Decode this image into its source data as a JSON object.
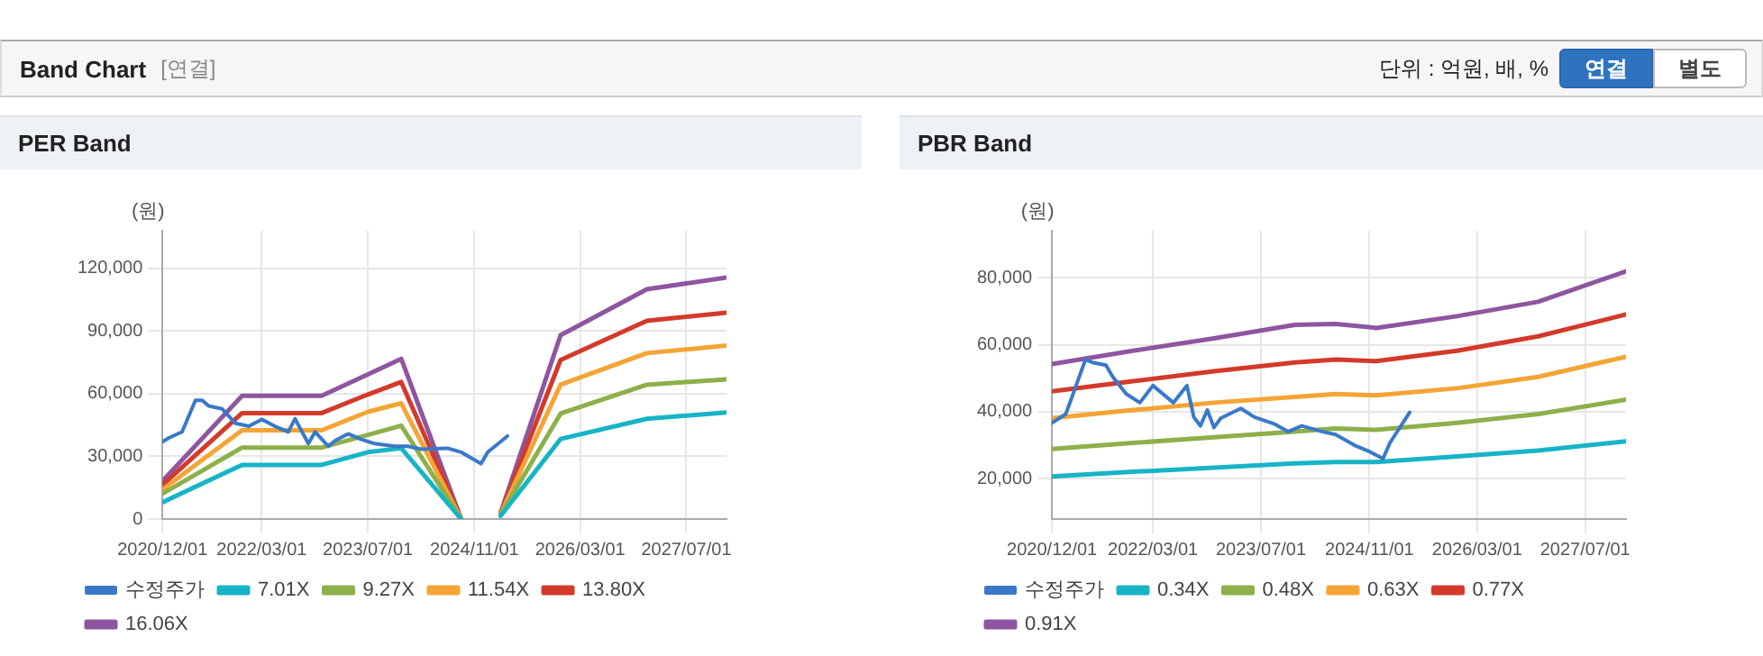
{
  "chart_data": [
    {
      "type": "other",
      "title": "Band Chart",
      "subtitle": "[연결]",
      "annotations": [
        "단위 : 억원, 배, %",
        "연결",
        "별도"
      ]
    },
    {
      "type": "line",
      "title": "PER Band",
      "ylabel": "(원)",
      "xlim": [
        "2020-12-01",
        "2028-01-01"
      ],
      "xticks": [
        {
          "value": "2020-12-01",
          "label": "2020/12/01"
        },
        {
          "value": "2022-03-01",
          "label": "2022/03/01"
        },
        {
          "value": "2023-07-01",
          "label": "2023/07/01"
        },
        {
          "value": "2024-11-01",
          "label": "2024/11/01"
        },
        {
          "value": "2026-03-01",
          "label": "2026/03/01"
        },
        {
          "value": "2027-07-01",
          "label": "2027/07/01"
        }
      ],
      "ylim": [
        0,
        138000
      ],
      "yticks": [
        {
          "value": 0,
          "label": "0"
        },
        {
          "value": 30000,
          "label": "30,000"
        },
        {
          "value": 60000,
          "label": "60,000"
        },
        {
          "value": 90000,
          "label": "90,000"
        },
        {
          "value": 120000,
          "label": "120,000"
        }
      ],
      "grid": true,
      "legend": "bottom",
      "marker": "none",
      "line_style": "solid",
      "x": [
        "2020-12",
        "2021-12",
        "2022-12",
        "2023-07",
        "2023-12",
        "2024-09",
        "2024-12",
        "2025-03",
        "2025-12",
        "2027-01",
        "2028-01"
      ],
      "series": [
        {
          "name": "수정주가",
          "color": "#3a78c9",
          "x": [
            "2020-12",
            "2021-01",
            "2021-03",
            "2021-05",
            "2021-06",
            "2021-07",
            "2021-09",
            "2021-11",
            "2022-01",
            "2022-03",
            "2022-05",
            "2022-07",
            "2022-08",
            "2022-10",
            "2022-11",
            "2023-01",
            "2023-02",
            "2023-04",
            "2023-06",
            "2023-08",
            "2023-11",
            "2024-01",
            "2024-03",
            "2024-07",
            "2024-09",
            "2024-12",
            "2025-01",
            "2025-04"
          ],
          "values": [
            37000,
            38900,
            41700,
            56800,
            56800,
            54100,
            52700,
            45800,
            44400,
            47700,
            44400,
            41700,
            48000,
            36100,
            41700,
            34800,
            37500,
            40800,
            38100,
            36100,
            34800,
            34800,
            33400,
            33900,
            32000,
            26500,
            32000,
            39700
          ]
        },
        {
          "name": "7.01X",
          "color": "#17b4c6",
          "values": [
            8000,
            25900,
            25900,
            32000,
            33900,
            0,
            null,
            1500,
            38300,
            48000,
            51000
          ]
        },
        {
          "name": "9.27X",
          "color": "#8db04a",
          "values": [
            12100,
            34200,
            34200,
            40300,
            44700,
            0,
            null,
            2000,
            50500,
            64300,
            66800
          ]
        },
        {
          "name": "11.54X",
          "color": "#f4a535",
          "values": [
            14100,
            42500,
            42500,
            51300,
            55400,
            0,
            null,
            2400,
            64300,
            79400,
            83000
          ]
        },
        {
          "name": "13.80X",
          "color": "#d33a2b",
          "values": [
            16300,
            50700,
            50700,
            59600,
            65600,
            0,
            null,
            2800,
            76100,
            94900,
            98800
          ]
        },
        {
          "name": "16.06X",
          "color": "#8e55a0",
          "values": [
            18200,
            59000,
            59000,
            69200,
            76700,
            0,
            null,
            3000,
            88000,
            110000,
            115600
          ]
        }
      ]
    },
    {
      "type": "line",
      "title": "PBR Band",
      "ylabel": "(원)",
      "xlim": [
        "2020-12-01",
        "2028-01-01"
      ],
      "xticks": [
        {
          "value": "2020-12-01",
          "label": "2020/12/01"
        },
        {
          "value": "2022-03-01",
          "label": "2022/03/01"
        },
        {
          "value": "2023-07-01",
          "label": "2023/07/01"
        },
        {
          "value": "2024-11-01",
          "label": "2024/11/01"
        },
        {
          "value": "2026-03-01",
          "label": "2026/03/01"
        },
        {
          "value": "2027-07-01",
          "label": "2027/07/01"
        }
      ],
      "ylim": [
        8000,
        94000
      ],
      "yticks": [
        {
          "value": 20000,
          "label": "20,000"
        },
        {
          "value": 40000,
          "label": "40,000"
        },
        {
          "value": 60000,
          "label": "60,000"
        },
        {
          "value": 80000,
          "label": "80,000"
        }
      ],
      "grid": true,
      "legend": "bottom",
      "marker": "none",
      "line_style": "solid",
      "x": [
        "2020-12",
        "2021-12",
        "2022-12",
        "2023-12",
        "2024-06",
        "2024-12",
        "2025-12",
        "2026-12",
        "2028-01"
      ],
      "series": [
        {
          "name": "수정주가",
          "color": "#3a78c9",
          "x": [
            "2020-12",
            "2021-02",
            "2021-03",
            "2021-05",
            "2021-06",
            "2021-08",
            "2021-09",
            "2021-11",
            "2022-01",
            "2022-03",
            "2022-06",
            "2022-08",
            "2022-09",
            "2022-10",
            "2022-11",
            "2022-12",
            "2023-01",
            "2023-04",
            "2023-06",
            "2023-09",
            "2023-11",
            "2024-01",
            "2024-04",
            "2024-06",
            "2024-09",
            "2024-11",
            "2025-01",
            "2025-02",
            "2025-05"
          ],
          "values": [
            36700,
            39300,
            44400,
            55600,
            54700,
            53900,
            50400,
            45300,
            42700,
            47800,
            42700,
            47800,
            38400,
            35800,
            40500,
            35300,
            38100,
            41000,
            38400,
            36300,
            34100,
            35800,
            34100,
            33200,
            29800,
            28100,
            26000,
            30700,
            39800
          ]
        },
        {
          "name": "0.34X",
          "color": "#17b4c6",
          "values": [
            20700,
            22100,
            23300,
            24600,
            25000,
            25000,
            26700,
            28400,
            31200
          ]
        },
        {
          "name": "0.48X",
          "color": "#8db04a",
          "values": [
            28900,
            30700,
            32400,
            34100,
            35000,
            34600,
            36700,
            39300,
            43600
          ]
        },
        {
          "name": "0.63X",
          "color": "#f4a535",
          "values": [
            38100,
            40500,
            42700,
            44400,
            45300,
            44900,
            47000,
            50400,
            56400
          ]
        },
        {
          "name": "0.77X",
          "color": "#d33a2b",
          "values": [
            46100,
            49100,
            52100,
            54700,
            55600,
            55100,
            58200,
            62500,
            69000
          ]
        },
        {
          "name": "0.91X",
          "color": "#8e55a0",
          "values": [
            54200,
            58200,
            61900,
            65900,
            66200,
            65000,
            68500,
            72800,
            81900
          ]
        }
      ]
    }
  ]
}
